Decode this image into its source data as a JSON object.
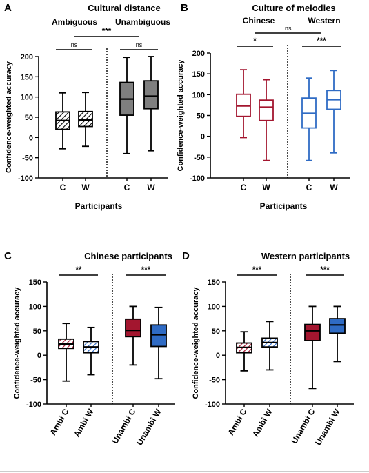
{
  "colors": {
    "black": "#000000",
    "gray_fill": "#7f7f7f",
    "red": "#a3162f",
    "blue": "#2f6bc4",
    "white": "#ffffff"
  },
  "chart_data": [
    {
      "letter": "A",
      "type": "box",
      "title": "Cultural distance",
      "ylabel": "Confidence-weighted accuracy",
      "xlabel": "Participants",
      "ylim": [
        -100,
        200
      ],
      "yticks": [
        -100,
        -50,
        0,
        50,
        100,
        150,
        200
      ],
      "groups": [
        "Ambiguous",
        "Unambiguous"
      ],
      "categories": [
        "C",
        "W",
        "C",
        "W"
      ],
      "boxes": [
        {
          "label": "C",
          "min": -28,
          "q1": 20,
          "median": 42,
          "q3": 63,
          "max": 110,
          "style": "hatch-black"
        },
        {
          "label": "W",
          "min": -22,
          "q1": 27,
          "median": 43,
          "q3": 64,
          "max": 111,
          "style": "hatch-black"
        },
        {
          "label": "C",
          "min": -40,
          "q1": 55,
          "median": 95,
          "q3": 136,
          "max": 198,
          "style": "solid-gray"
        },
        {
          "label": "W",
          "min": -33,
          "q1": 71,
          "median": 102,
          "q3": 140,
          "max": 200,
          "style": "solid-gray"
        }
      ],
      "significance": [
        {
          "pair": [
            0,
            1
          ],
          "label": "ns"
        },
        {
          "pair": [
            2,
            3
          ],
          "label": "ns"
        },
        {
          "pair": [
            "group0",
            "group1"
          ],
          "label": "***"
        }
      ]
    },
    {
      "letter": "B",
      "type": "box",
      "title": "Culture of melodies",
      "ylabel": "Confidence-weighted accuracy",
      "xlabel": "Participants",
      "ylim": [
        -100,
        200
      ],
      "yticks": [
        -100,
        -50,
        0,
        50,
        100,
        150,
        200
      ],
      "groups": [
        "Chinese",
        "Western"
      ],
      "categories": [
        "C",
        "W",
        "C",
        "W"
      ],
      "boxes": [
        {
          "label": "C",
          "min": -3,
          "q1": 48,
          "median": 73,
          "q3": 101,
          "max": 160,
          "style": "outline-red"
        },
        {
          "label": "W",
          "min": -58,
          "q1": 38,
          "median": 70,
          "q3": 87,
          "max": 136,
          "style": "outline-red"
        },
        {
          "label": "C",
          "min": -58,
          "q1": 20,
          "median": 55,
          "q3": 92,
          "max": 140,
          "style": "outline-blue"
        },
        {
          "label": "W",
          "min": -40,
          "q1": 65,
          "median": 88,
          "q3": 110,
          "max": 158,
          "style": "outline-blue"
        }
      ],
      "significance": [
        {
          "pair": [
            0,
            1
          ],
          "label": "*"
        },
        {
          "pair": [
            2,
            3
          ],
          "label": "***"
        },
        {
          "pair": [
            "group0",
            "group1"
          ],
          "label": "ns"
        }
      ]
    },
    {
      "letter": "C",
      "type": "box",
      "title": "Chinese participants",
      "ylabel": "Confidence-weighted accuracy",
      "xlabel": "",
      "ylim": [
        -100,
        150
      ],
      "yticks": [
        -100,
        -50,
        0,
        50,
        100,
        150
      ],
      "categories": [
        "Ambi C",
        "Ambi W",
        "Unambi C",
        "Unambi W"
      ],
      "boxes": [
        {
          "label": "Ambi C",
          "min": -53,
          "q1": 14,
          "median": 23,
          "q3": 33,
          "max": 65,
          "style": "hatch-red"
        },
        {
          "label": "Ambi W",
          "min": -40,
          "q1": 5,
          "median": 17,
          "q3": 28,
          "max": 57,
          "style": "hatch-blue"
        },
        {
          "label": "Unambi C",
          "min": -20,
          "q1": 38,
          "median": 51,
          "q3": 74,
          "max": 100,
          "style": "solid-red"
        },
        {
          "label": "Unambi W",
          "min": -48,
          "q1": 18,
          "median": 42,
          "q3": 62,
          "max": 98,
          "style": "solid-blue"
        }
      ],
      "significance": [
        {
          "pair": [
            0,
            1
          ],
          "label": "**"
        },
        {
          "pair": [
            2,
            3
          ],
          "label": "***"
        }
      ]
    },
    {
      "letter": "D",
      "type": "box",
      "title": "Western participants",
      "ylabel": "Confidence-weighted accuracy",
      "xlabel": "",
      "ylim": [
        -100,
        150
      ],
      "yticks": [
        -100,
        -50,
        0,
        50,
        100,
        150
      ],
      "categories": [
        "Ambi C",
        "Ambi W",
        "Unambi C",
        "Unambi W"
      ],
      "boxes": [
        {
          "label": "Ambi C",
          "min": -32,
          "q1": 5,
          "median": 16,
          "q3": 25,
          "max": 48,
          "style": "hatch-red"
        },
        {
          "label": "Ambi W",
          "min": -30,
          "q1": 17,
          "median": 26,
          "q3": 35,
          "max": 69,
          "style": "hatch-blue"
        },
        {
          "label": "Unambi C",
          "min": -68,
          "q1": 30,
          "median": 50,
          "q3": 63,
          "max": 100,
          "style": "solid-red"
        },
        {
          "label": "Unambi W",
          "min": -13,
          "q1": 45,
          "median": 62,
          "q3": 75,
          "max": 100,
          "style": "solid-blue"
        }
      ],
      "significance": [
        {
          "pair": [
            0,
            1
          ],
          "label": "***"
        },
        {
          "pair": [
            2,
            3
          ],
          "label": "***"
        }
      ]
    }
  ]
}
